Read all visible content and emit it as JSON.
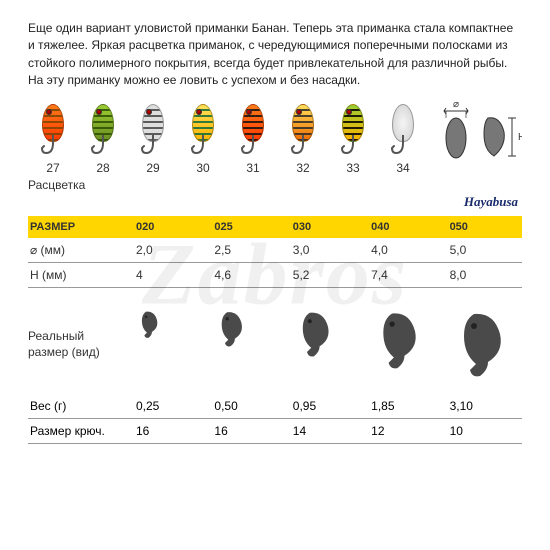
{
  "description": "Еще один вариант уловистой приманки Банан. Теперь эта приманка стала компактнее и тяжелее.  Яркая расцветка приманок, с чередующимися поперечными полосками из стойкого полимерного покрытия, всегда будет привлекательной для различной рыбы. На эту приманку можно ее ловить с успехом и без насадки.",
  "color_label": "Расцветка",
  "brand": "Hayabusa",
  "watermark": "Zabros",
  "diagram": {
    "dia_symbol": "⌀",
    "height_symbol": "H"
  },
  "lures": [
    {
      "num": "27",
      "bg": "linear-gradient(#ff7a1a,#ff3a00)",
      "stripe": "#7a4400",
      "eye": true
    },
    {
      "num": "28",
      "bg": "linear-gradient(#9acd32,#6b8e23)",
      "stripe": "#2d4d00",
      "eye": true
    },
    {
      "num": "29",
      "bg": "#dedede",
      "stripe": "#444",
      "eye": true
    },
    {
      "num": "30",
      "bg": "linear-gradient(#ffe05a,#ffb300)",
      "stripe": "#0f6b3a",
      "eye": true
    },
    {
      "num": "31",
      "bg": "linear-gradient(#ff7a1a,#ff3a00)",
      "stripe": "#111",
      "eye": true
    },
    {
      "num": "32",
      "bg": "linear-gradient(#ffe05a,#ef6a00)",
      "stripe": "#2a2a2a",
      "eye": true
    },
    {
      "num": "33",
      "bg": "linear-gradient(#9acd32,#ffb300)",
      "stripe": "#000",
      "eye": true
    },
    {
      "num": "34",
      "bg": "radial-gradient(#f5f5f5,#cfcfcf)",
      "stripe": "none",
      "eye": false
    }
  ],
  "size_header": "РАЗМЕР",
  "sizes": [
    "020",
    "025",
    "030",
    "040",
    "050"
  ],
  "spec_rows": [
    {
      "label": "⌀ (мм)",
      "vals": [
        "2,0",
        "2,5",
        "3,0",
        "4,0",
        "5,0"
      ]
    },
    {
      "label": "H (мм)",
      "vals": [
        "4",
        "4,6",
        "5,2",
        "7,4",
        "8,0"
      ]
    }
  ],
  "real_size_label": "Реальный\nразмер (вид)",
  "silhouette_scales": [
    0.42,
    0.55,
    0.7,
    0.88,
    1.0
  ],
  "bottom_rows": [
    {
      "label": "Вес (г)",
      "vals": [
        "0,25",
        "0,50",
        "0,95",
        "1,85",
        "3,10"
      ]
    },
    {
      "label": "Размер крюч.",
      "vals": [
        "16",
        "16",
        "14",
        "12",
        "10"
      ]
    }
  ],
  "colors": {
    "header_bg": "#ffd600",
    "border": "#999999",
    "text": "#222222"
  }
}
